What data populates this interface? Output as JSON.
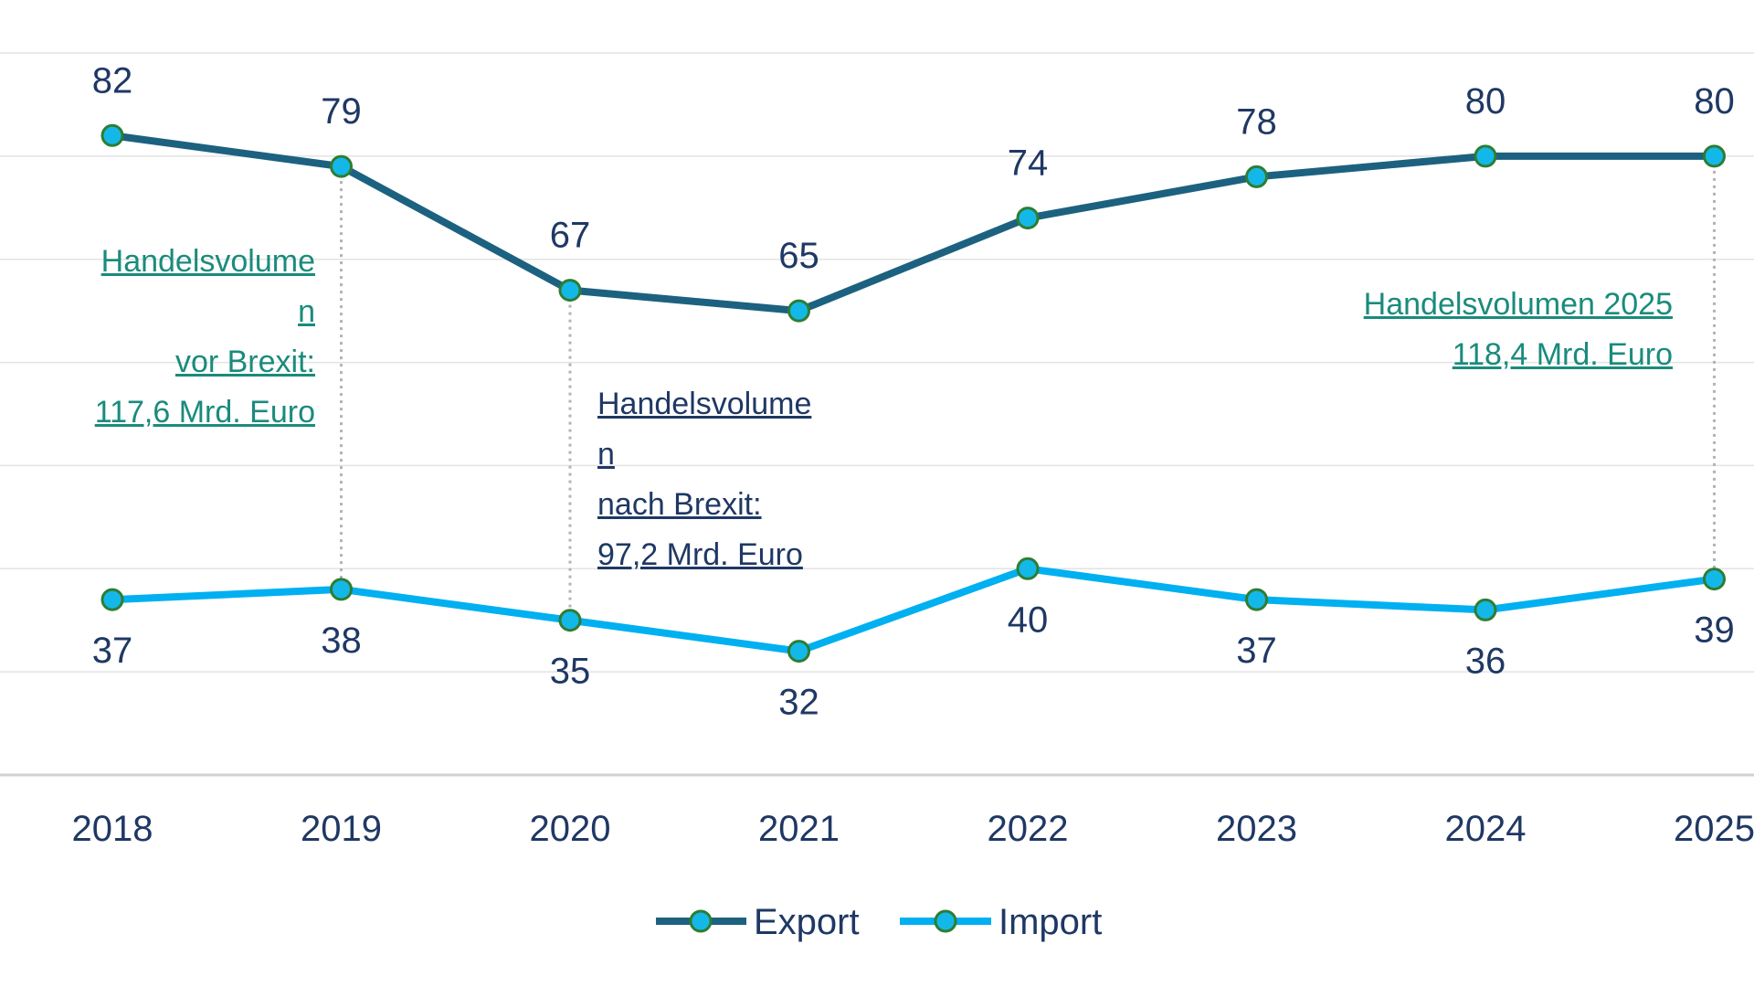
{
  "chart_data": {
    "type": "line",
    "categories": [
      "2018",
      "2019",
      "2020",
      "2021",
      "2022",
      "2023",
      "2024",
      "2025"
    ],
    "series": [
      {
        "name": "Export",
        "values": [
          82,
          79,
          67,
          65,
          74,
          78,
          80,
          80
        ],
        "color": "#1d6180"
      },
      {
        "name": "Import",
        "values": [
          37,
          38,
          35,
          32,
          40,
          37,
          36,
          39
        ],
        "color": "#00b0f0"
      }
    ],
    "marker_fill": "#14b8e8",
    "marker_edge": "#2e7d32",
    "gridlines": true,
    "legend": "bottom-center",
    "ylim": [
      20,
      90
    ],
    "annotations": [
      {
        "text": "Handelsvolume\nn\nvor Brexit:\n117,6 Mrd. Euro",
        "color": "#1a8b7c",
        "between": [
          "2019",
          "2019"
        ]
      },
      {
        "text": "Handelsvolume\nn\nnach Brexit:\n97,2 Mrd. Euro",
        "color": "#1f3864",
        "between": [
          "2020",
          "2020"
        ]
      },
      {
        "text": "Handelsvolumen 2025\n118,4 Mrd. Euro",
        "color": "#1a8b7c",
        "between": [
          "2025",
          "2025"
        ]
      }
    ]
  }
}
